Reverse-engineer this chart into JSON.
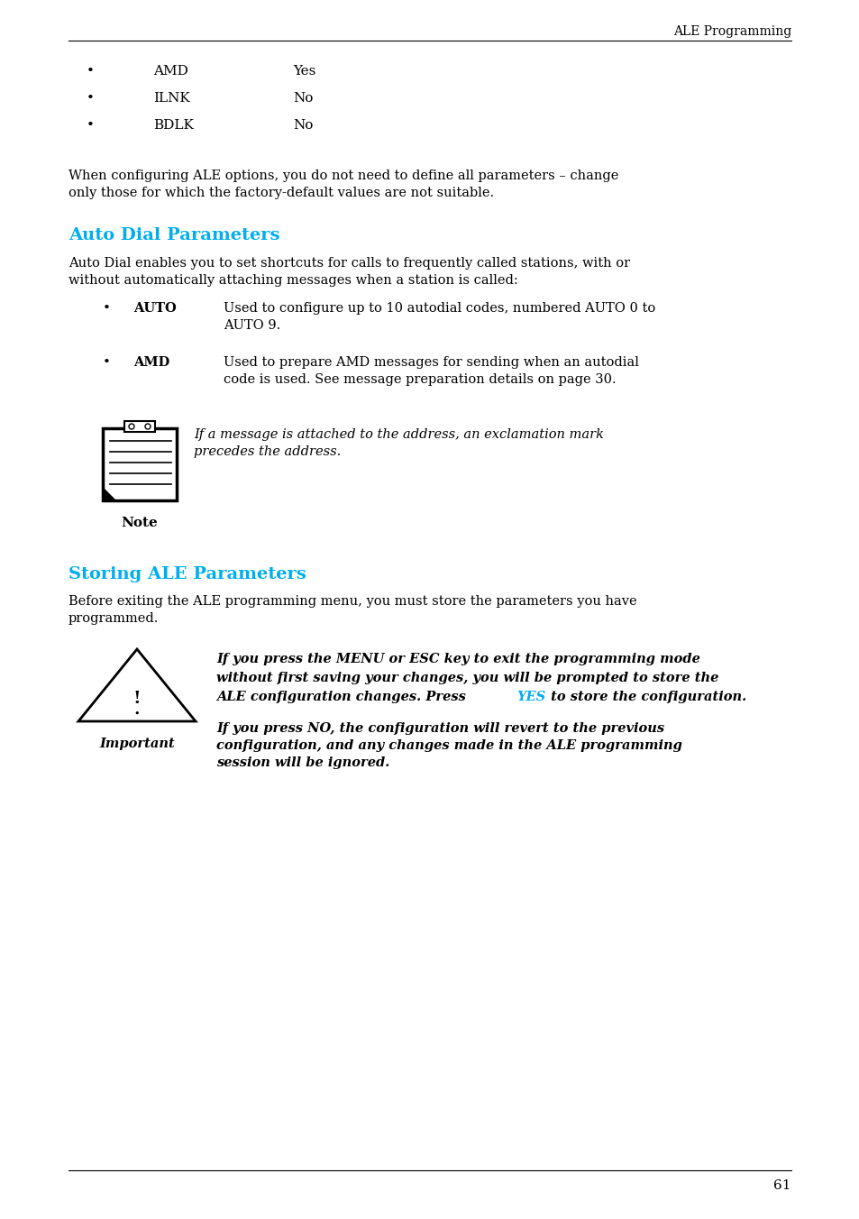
{
  "header_text": "ALE Programming",
  "footer_page_num": "61",
  "bullet_items_top": [
    {
      "label": "AMD",
      "value": "Yes"
    },
    {
      "label": "ILNK",
      "value": "No"
    },
    {
      "label": "BDLK",
      "value": "No"
    }
  ],
  "intro_paragraph": "When configuring ALE options, you do not need to define all parameters – change\nonly those for which the factory-default values are not suitable.",
  "section1_title": "Auto Dial Parameters",
  "section1_title_color": "#00AEEF",
  "section1_intro": "Auto Dial enables you to set shortcuts for calls to frequently called stations, with or\nwithout automatically attaching messages when a station is called:",
  "auto_label": "AUTO",
  "auto_text": "Used to configure up to 10 autodial codes, numbered AUTO 0 to\nAUTO 9.",
  "amd_label": "AMD",
  "amd_text": "Used to prepare AMD messages for sending when an autodial\ncode is used. See message preparation details on page 30.",
  "note_text": "If a message is attached to the address, an exclamation mark\nprecedes the address.",
  "note_label": "Note",
  "section2_title": "Storing ALE Parameters",
  "section2_title_color": "#00AEEF",
  "section2_intro": "Before exiting the ALE programming menu, you must store the parameters you have\nprogrammed.",
  "imp_line1": "If you press the MENU or ESC key to exit the programming mode",
  "imp_line2": "without first saving your changes, you will be prompted to store the",
  "imp_line3_before": "ALE configuration changes. Press ",
  "imp_yes": "YES",
  "imp_yes_color": "#00AEEF",
  "imp_line3_after": " to store the configuration.",
  "important_label": "Important",
  "important_text2": "If you press NO, the configuration will revert to the previous\nconfiguration, and any changes made in the ALE programming\nsession will be ignored.",
  "bg_color": "#FFFFFF",
  "text_color": "#000000"
}
